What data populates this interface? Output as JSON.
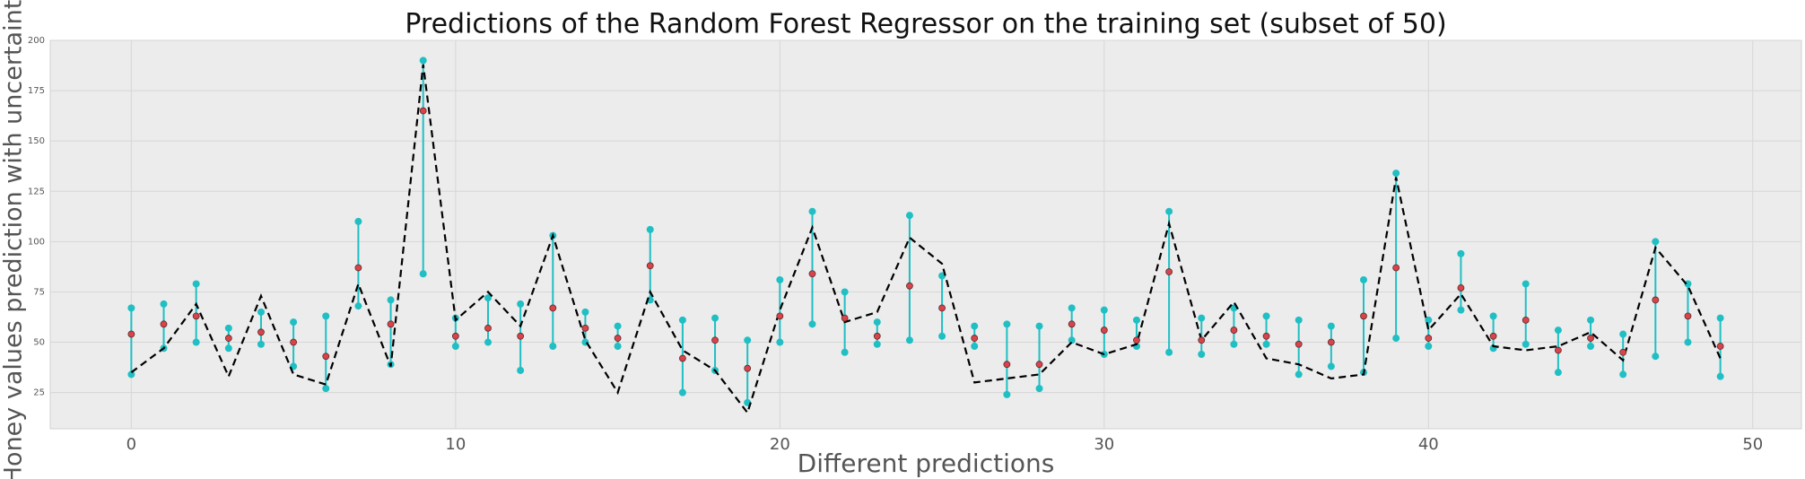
{
  "chart_data": {
    "type": "errorbar",
    "title": "Predictions of the Random Forest Regressor on the training set (subset of 50)",
    "xlabel": "Different predictions",
    "ylabel": "Honey values prediction with uncertainty",
    "x": [
      0,
      1,
      2,
      3,
      4,
      5,
      6,
      7,
      8,
      9,
      10,
      11,
      12,
      13,
      14,
      15,
      16,
      17,
      18,
      19,
      20,
      21,
      22,
      23,
      24,
      25,
      26,
      27,
      28,
      29,
      30,
      31,
      32,
      33,
      34,
      35,
      36,
      37,
      38,
      39,
      40,
      41,
      42,
      43,
      44,
      45,
      46,
      47,
      48,
      49
    ],
    "actual": {
      "color": "#000000",
      "dashed": true,
      "values": [
        35,
        47,
        69,
        33,
        73,
        34,
        29,
        79,
        38,
        188,
        61,
        75,
        58,
        103,
        51,
        25,
        75,
        46,
        36,
        15,
        66,
        107,
        60,
        65,
        102,
        89,
        30,
        32,
        34,
        50,
        44,
        49,
        109,
        51,
        70,
        42,
        39,
        32,
        34,
        132,
        56,
        74,
        48,
        46,
        48,
        55,
        41,
        97,
        78,
        42
      ]
    },
    "predictions": {
      "color": "#d9434a",
      "bar_color": "#1fbfc4",
      "values": [
        54,
        59,
        63,
        52,
        55,
        50,
        43,
        87,
        59,
        165,
        53,
        57,
        53,
        67,
        57,
        52,
        88,
        42,
        51,
        37,
        63,
        84,
        62,
        53,
        78,
        67,
        52,
        39,
        39,
        59,
        56,
        51,
        85,
        51,
        56,
        53,
        49,
        50,
        63,
        87,
        52,
        77,
        53,
        61,
        46,
        52,
        45,
        71,
        63,
        48
      ],
      "lower": [
        34,
        47,
        50,
        47,
        49,
        38,
        27,
        68,
        39,
        84,
        48,
        50,
        36,
        48,
        50,
        48,
        71,
        25,
        36,
        20,
        50,
        59,
        45,
        49,
        51,
        53,
        48,
        24,
        27,
        51,
        44,
        48,
        45,
        44,
        49,
        49,
        34,
        38,
        35,
        52,
        48,
        66,
        47,
        49,
        35,
        48,
        34,
        43,
        50,
        33
      ],
      "upper": [
        67,
        69,
        79,
        57,
        65,
        60,
        63,
        110,
        71,
        190,
        62,
        72,
        69,
        103,
        65,
        58,
        106,
        61,
        62,
        51,
        81,
        115,
        75,
        60,
        113,
        83,
        58,
        59,
        58,
        67,
        66,
        61,
        115,
        62,
        67,
        63,
        61,
        58,
        81,
        134,
        61,
        94,
        63,
        79,
        56,
        61,
        54,
        100,
        79,
        62
      ]
    },
    "xlim": [
      -2.5,
      51.5
    ],
    "ylim": [
      7,
      200
    ],
    "xticks": [
      0,
      10,
      20,
      30,
      40,
      50
    ],
    "yticks": [
      25,
      50,
      75,
      100,
      125,
      150,
      175,
      200
    ],
    "grid": true
  }
}
